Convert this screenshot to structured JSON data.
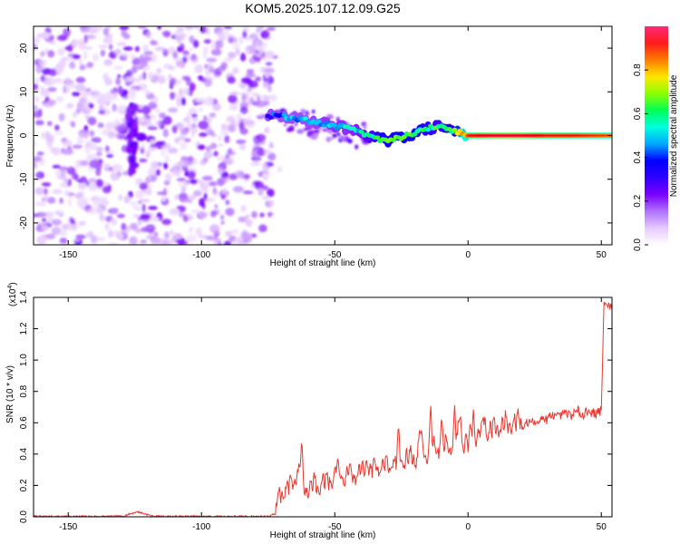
{
  "title": "KOM5.2025.107.12.09.G25",
  "colors": {
    "axis": "#000000",
    "snr_line": "#e8382f",
    "spectrogram_background": "#ffffff",
    "colormap": [
      "#ffffff",
      "#e6c9ff",
      "#b070ff",
      "#7a00ff",
      "#2f00ff",
      "#0000ff",
      "#00a8ff",
      "#00ffdd",
      "#00ff55",
      "#8cff00",
      "#ffe600",
      "#ff7b00",
      "#ff1b1b",
      "#ff2a7a"
    ]
  },
  "chart_data": [
    {
      "type": "heatmap",
      "title": "KOM5.2025.107.12.09.G25",
      "xlabel": "Height of straight line (km)",
      "ylabel": "Frequency (Hz)",
      "xlim": [
        -163,
        54
      ],
      "ylim": [
        -25,
        25
      ],
      "xticks": [
        -150,
        -100,
        -50,
        0,
        50
      ],
      "yticks": [
        -20,
        -10,
        0,
        10,
        20
      ],
      "xtick_labels": [
        "-150",
        "-100",
        "-50",
        "0",
        "50"
      ],
      "ytick_labels": [
        "-20",
        "-10",
        "0",
        "10",
        "20"
      ],
      "grid": false,
      "noise_region_x": [
        -163,
        -73
      ],
      "noise_stripe_x": -126,
      "ridge": [
        {
          "x": -75,
          "f": 4.6,
          "a": 0.35
        },
        {
          "x": -68,
          "f": 4.2,
          "a": 0.45
        },
        {
          "x": -60,
          "f": 3.4,
          "a": 0.48
        },
        {
          "x": -52,
          "f": 2.6,
          "a": 0.5
        },
        {
          "x": -45,
          "f": 1.6,
          "a": 0.5
        },
        {
          "x": -40,
          "f": 0.6,
          "a": 0.52
        },
        {
          "x": -35,
          "f": -0.5,
          "a": 0.6
        },
        {
          "x": -30,
          "f": -1.2,
          "a": 0.65
        },
        {
          "x": -25,
          "f": -0.4,
          "a": 0.65
        },
        {
          "x": -20,
          "f": 0.6,
          "a": 0.65
        },
        {
          "x": -15,
          "f": 1.6,
          "a": 0.6
        },
        {
          "x": -10,
          "f": 2.1,
          "a": 0.6
        },
        {
          "x": -5,
          "f": 1.0,
          "a": 0.65
        },
        {
          "x": 0,
          "f": 0.0,
          "a": 0.9
        },
        {
          "x": 10,
          "f": 0.0,
          "a": 0.95
        },
        {
          "x": 20,
          "f": 0.0,
          "a": 0.95
        },
        {
          "x": 30,
          "f": 0.0,
          "a": 0.9
        },
        {
          "x": 40,
          "f": 0.0,
          "a": 0.9
        },
        {
          "x": 54,
          "f": 0.0,
          "a": 0.85
        }
      ],
      "colorbar": {
        "label": "Normalized spectral amplitude",
        "range": [
          0,
          1
        ],
        "ticks": [
          0.0,
          0.2,
          0.4,
          0.6,
          0.8
        ],
        "tick_labels": [
          "0.0",
          "0.2",
          "0.4",
          "0.6",
          "0.8"
        ]
      }
    },
    {
      "type": "line",
      "xlabel": "Height of straight line (km)",
      "ylabel": "SNR (10 * v/v)",
      "y_multiplier_label": "(x10",
      "y_multiplier_exponent": "4",
      "y_multiplier_close": ")",
      "xlim": [
        -163,
        54
      ],
      "ylim": [
        0,
        1.4
      ],
      "xticks": [
        -150,
        -100,
        -50,
        0,
        50
      ],
      "yticks": [
        0.0,
        0.2,
        0.4,
        0.6,
        0.8,
        1.0,
        1.2,
        1.4
      ],
      "xtick_labels": [
        "-150",
        "-100",
        "-50",
        "0",
        "50"
      ],
      "ytick_labels": [
        "0.0",
        "0.2",
        "0.4",
        "0.6",
        "0.8",
        "1.0",
        "1.2",
        "1.4"
      ],
      "grid": false,
      "series": [
        {
          "envelope": {
            "x": [
              -163,
              -130,
              -124,
              -122,
              -118,
              -100,
              -75,
              -72,
              -70,
              -66,
              -64,
              -62,
              -58,
              -50,
              -40,
              -30,
              -20,
              -10,
              0,
              10,
              20,
              30,
              40,
              50,
              51,
              54
            ],
            "y": [
              0.0,
              0.0,
              0.03,
              0.02,
              0.0,
              0.0,
              0.0,
              0.02,
              0.1,
              0.16,
              0.24,
              0.12,
              0.15,
              0.19,
              0.23,
              0.28,
              0.33,
              0.38,
              0.44,
              0.51,
              0.57,
              0.62,
              0.65,
              0.66,
              1.35,
              1.35
            ]
          },
          "peaks": [
            {
              "x": -62.5,
              "y": 0.38
            },
            {
              "x": -49,
              "y": 0.28
            },
            {
              "x": -38,
              "y": 0.35
            },
            {
              "x": -26,
              "y": 0.44
            },
            {
              "x": -18,
              "y": 0.5
            },
            {
              "x": -14,
              "y": 0.62
            },
            {
              "x": -10,
              "y": 0.55
            },
            {
              "x": -5,
              "y": 0.6
            },
            {
              "x": -3,
              "y": 0.62
            },
            {
              "x": 2,
              "y": 0.63
            },
            {
              "x": 6,
              "y": 0.6
            }
          ]
        }
      ]
    }
  ]
}
